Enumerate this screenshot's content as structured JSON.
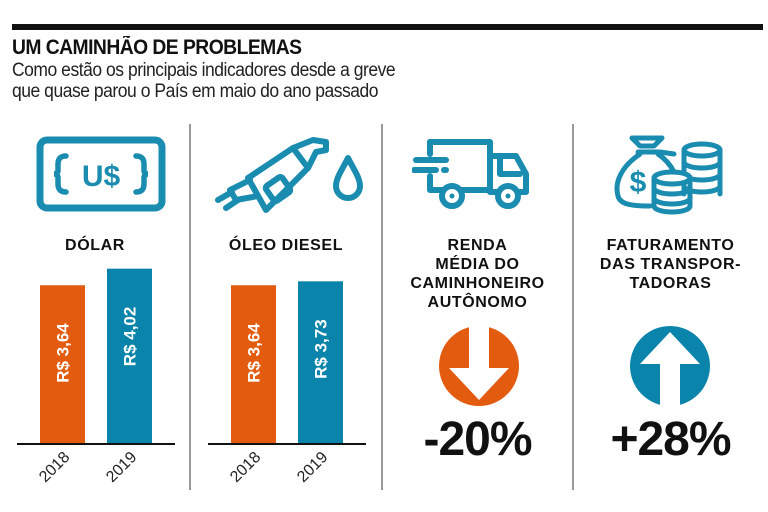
{
  "header": {
    "title": "UM CAMINHÃO DE PROBLEMAS",
    "subtitle_line1": "Como estão os principais indicadores desde a greve",
    "subtitle_line2": "que quase parou o País em maio do ano passado"
  },
  "colors": {
    "orange": "#e35b0f",
    "blue": "#0a84aa",
    "icon": "#1a8cb0",
    "text": "#111111"
  },
  "panels": [
    {
      "label": "DÓLAR",
      "icon": "us-dollar-bill-icon"
    },
    {
      "label": "ÓLEO DIESEL",
      "icon": "fuel-nozzle-icon"
    },
    {
      "label_lines": [
        "RENDA",
        "MÉDIA DO",
        "CAMINHONEIRO",
        "AUTÔNOMO"
      ],
      "icon": "delivery-truck-icon",
      "change": "-20%",
      "direction": "down",
      "arrow_icon": "arrow-down-circle-icon"
    },
    {
      "label_lines": [
        "FATURAMENTO",
        "DAS TRANSPOR-",
        "TADORAS"
      ],
      "icon": "money-bag-coins-icon",
      "change": "+28%",
      "direction": "up",
      "arrow_icon": "arrow-up-circle-icon"
    }
  ],
  "chart_data": [
    {
      "type": "bar",
      "title": "DÓLAR",
      "categories": [
        "2018",
        "2019"
      ],
      "values": [
        3.64,
        4.02
      ],
      "value_labels": [
        "R$ 3,64",
        "R$ 4,02"
      ],
      "bar_colors": [
        "#e35b0f",
        "#0a84aa"
      ],
      "xlabel": "",
      "ylabel": "",
      "ylim": [
        0,
        4.7
      ],
      "grid": false
    },
    {
      "type": "bar",
      "title": "ÓLEO DIESEL",
      "categories": [
        "2018",
        "2019"
      ],
      "values": [
        3.64,
        3.73
      ],
      "value_labels": [
        "R$ 3,64",
        "R$ 3,73"
      ],
      "bar_colors": [
        "#e35b0f",
        "#0a84aa"
      ],
      "xlabel": "",
      "ylabel": "",
      "ylim": [
        0,
        4.7
      ],
      "grid": false
    }
  ]
}
